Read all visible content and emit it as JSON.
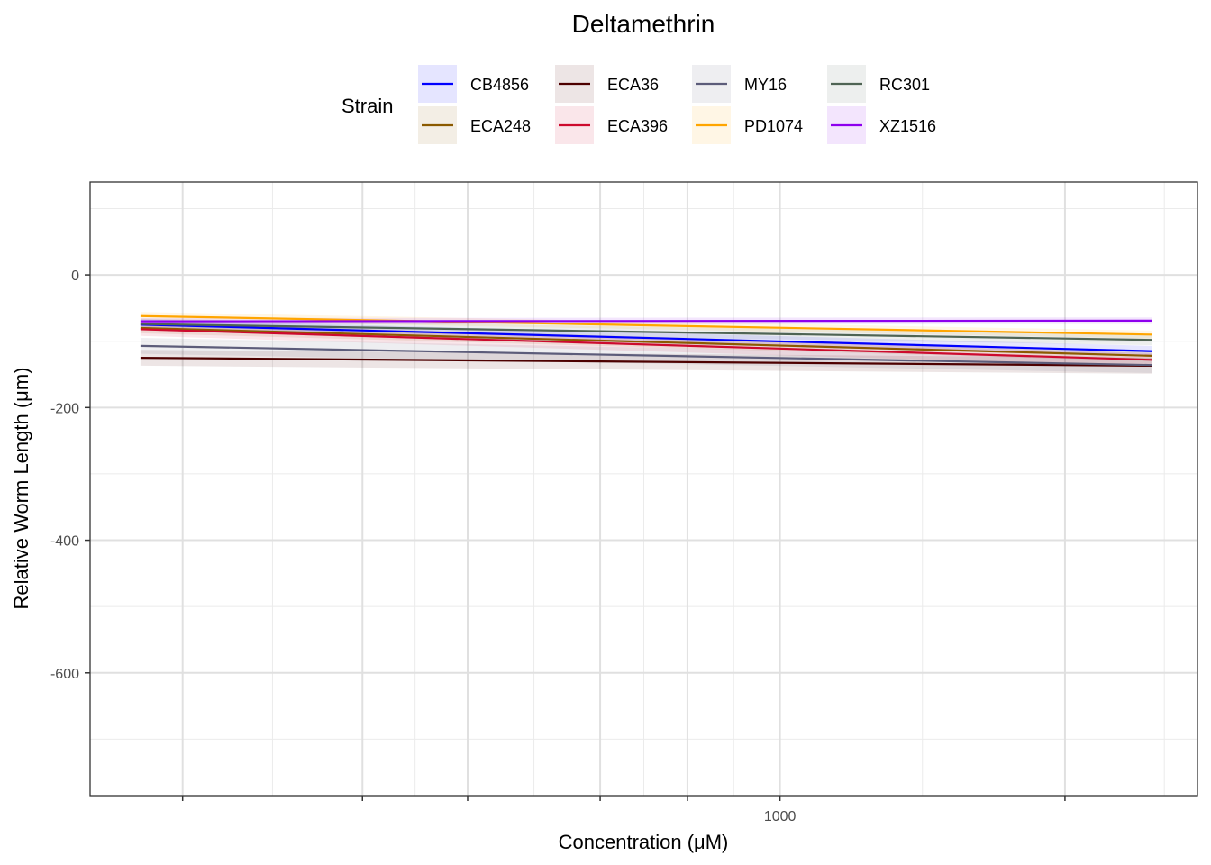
{
  "chart_data": {
    "type": "line",
    "title": "Deltamethrin",
    "xlabel": "Concentration (μM)",
    "ylabel": "Relative Worm Length (μm)",
    "x_scale": "log",
    "x_range": [
      70,
      5000
    ],
    "xticks": [
      {
        "value": 1000,
        "label": "1000"
      }
    ],
    "x_major_ticks": [
      100,
      200,
      300,
      500,
      700,
      1000,
      3000
    ],
    "ylim": [
      -785,
      140
    ],
    "yticks": [
      {
        "value": 0,
        "label": "0"
      },
      {
        "value": -200,
        "label": "-200"
      },
      {
        "value": -400,
        "label": "-400"
      },
      {
        "value": -600,
        "label": "-600"
      }
    ],
    "grid": true,
    "legend": {
      "title": "Strain",
      "placement": "top"
    },
    "x": [
      85,
      4200
    ],
    "series": [
      {
        "name": "CB4856",
        "color": "#0000ff",
        "values": [
          -75,
          -115
        ],
        "band": 8
      },
      {
        "name": "ECA248",
        "color": "#8b5a00",
        "values": [
          -80,
          -122
        ],
        "band": 8
      },
      {
        "name": "ECA36",
        "color": "#4d0000",
        "values": [
          -125,
          -137
        ],
        "band": 12
      },
      {
        "name": "ECA396",
        "color": "#cd0a2e",
        "values": [
          -82,
          -128
        ],
        "band": 10
      },
      {
        "name": "MY16",
        "color": "#5c5c7a",
        "values": [
          -107,
          -136
        ],
        "band": 12
      },
      {
        "name": "PD1074",
        "color": "#ffa500",
        "values": [
          -62,
          -90
        ],
        "band": 6
      },
      {
        "name": "RC301",
        "color": "#4f6454",
        "values": [
          -74,
          -98
        ],
        "band": 8
      },
      {
        "name": "XZ1516",
        "color": "#8e00ee",
        "values": [
          -70,
          -69
        ],
        "band": 5
      }
    ]
  }
}
